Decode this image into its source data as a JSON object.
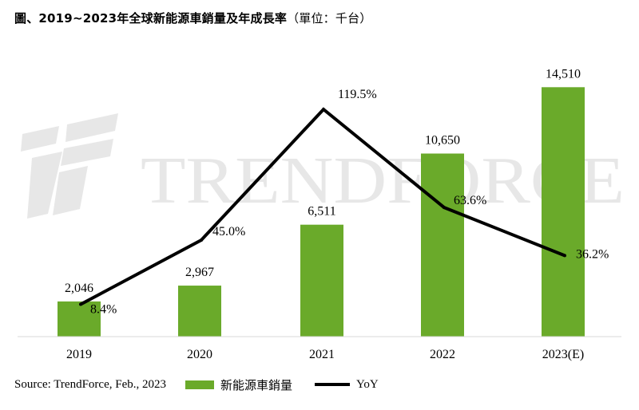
{
  "title": {
    "main": "圖、2019~2023年全球新能源車銷量及年成長率",
    "unit": "（單位：千台）"
  },
  "watermark": {
    "text": "TRENDFORCE"
  },
  "footer": {
    "source": "Source: TrendForce, Feb., 2023",
    "bar_legend": "新能源車銷量",
    "line_legend": "YoY"
  },
  "colors": {
    "bar": "#6aaa2a",
    "line": "#000000",
    "watermark": "#e7e7e7"
  },
  "chart_data": {
    "type": "bar",
    "categories": [
      "2019",
      "2020",
      "2021",
      "2022",
      "2023(E)"
    ],
    "series": [
      {
        "name": "新能源車銷量",
        "type": "bar",
        "values": [
          2046,
          2967,
          6511,
          10650,
          14510
        ],
        "labels": [
          "2,046",
          "2,967",
          "6,511",
          "10,650",
          "14,510"
        ]
      },
      {
        "name": "YoY",
        "type": "line",
        "values": [
          8.4,
          45.0,
          119.5,
          63.6,
          36.2
        ],
        "labels": [
          "8.4%",
          "45.0%",
          "119.5%",
          "63.6%",
          "36.2%"
        ]
      }
    ],
    "bar_axis_range": [
      0,
      16000
    ],
    "line_axis_range": [
      0,
      140
    ],
    "grid": false,
    "legend_position": "bottom"
  }
}
